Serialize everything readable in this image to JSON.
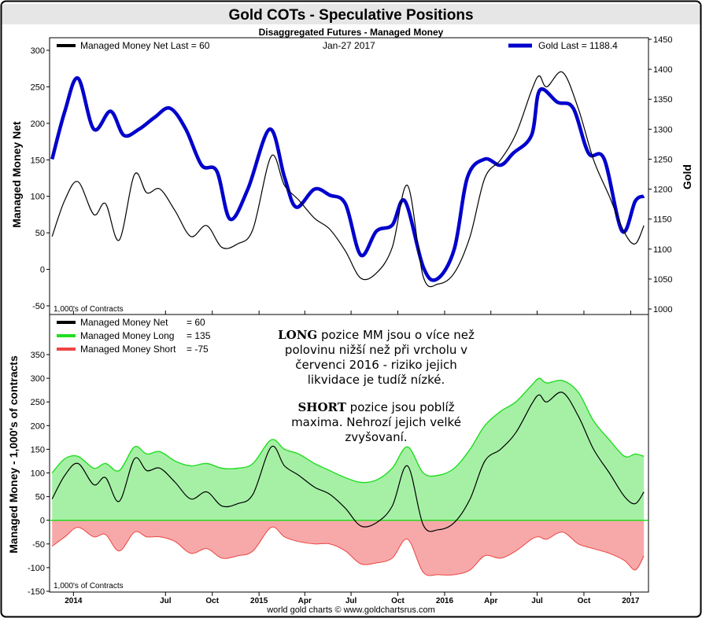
{
  "title": "Gold COTs - Speculative Positions",
  "subtitle": "Disaggregated Futures - Managed Money",
  "footer": "world gold charts © www.goldchartsrus.com",
  "colors": {
    "background": "#ffffff",
    "net": "#000000",
    "gold": "#0000cc",
    "long_line": "#22dd22",
    "long_fill": "#a6f0a6",
    "short_line": "#ee4444",
    "short_fill": "#f7a9a9",
    "title_bg": "#e6e6e6"
  },
  "top_panel": {
    "legend_net": "Managed Money Net   Last = 60",
    "date": "Jan-27  2017",
    "legend_gold": "Gold Last = 1188.4",
    "y_label_left": "Managed Money Net",
    "y_label_right": "Gold",
    "units": "1,000's of Contracts",
    "y_ticks_left": [
      "300",
      "250",
      "200",
      "150",
      "100",
      "50",
      "0",
      "-50"
    ],
    "y_ticks_right": [
      "1450",
      "1400",
      "1350",
      "1300",
      "1250",
      "1200",
      "1150",
      "1100",
      "1050",
      "1000"
    ]
  },
  "bottom_panel": {
    "legend_net": "Managed Money Net",
    "legend_net_value": "= 60",
    "legend_long": "Managed Money Long",
    "legend_long_value": "= 135",
    "legend_short": "Managed Money Short",
    "legend_short_value": "= -75",
    "y_label": "Managed Money - 1,000's of contracts",
    "units": "1,000's of Contracts",
    "y_ticks": [
      "350",
      "300",
      "250",
      "200",
      "150",
      "100",
      "50",
      "0",
      "-50",
      "-100",
      "-150"
    ],
    "note_line1_bold": "LONG",
    "note_line1_rest": " pozice MM jsou o více než",
    "note_line2": "polovinu nižší než při vrcholu v",
    "note_line3": "červenci 2016 - riziko jejich",
    "note_line4": "likvidace je tudíž nízké.",
    "note_line5_bold": "SHORT",
    "note_line5_rest": " pozice jsou poblíž",
    "note_line6": "maxima. Nehrozí jejich velké",
    "note_line7": "zvyšovaní."
  },
  "x_ticks": [
    "2014",
    "Jul",
    "Oct",
    "2015",
    "Apr",
    "Jul",
    "Oct",
    "2016",
    "Apr",
    "Jul",
    "Oct",
    "2017"
  ],
  "chart_data": [
    {
      "type": "line",
      "title": "Gold COTs - Speculative Positions",
      "subtitle": "Disaggregated Futures - Managed Money",
      "xlabel": "",
      "ylabel": "Managed Money Net",
      "ylabel_right": "Gold",
      "ylim": [
        -50,
        300
      ],
      "ylim_right": [
        1000,
        1450
      ],
      "x_range": [
        "2013-11-15",
        "2017-02-05"
      ],
      "grid": false,
      "legend": "top",
      "series": [
        {
          "name": "Managed Money Net",
          "axis": "left",
          "x": [
            "2013-11-20",
            "2013-12-15",
            "2014-01-10",
            "2014-02-10",
            "2014-03-05",
            "2014-04-01",
            "2014-05-01",
            "2014-05-25",
            "2014-06-20",
            "2014-07-20",
            "2014-08-20",
            "2014-09-20",
            "2014-10-20",
            "2014-11-20",
            "2014-12-20",
            "2015-01-25",
            "2015-02-20",
            "2015-03-20",
            "2015-04-20",
            "2015-05-20",
            "2015-06-20",
            "2015-07-20",
            "2015-08-20",
            "2015-09-20",
            "2015-10-20",
            "2015-11-20",
            "2015-12-20",
            "2016-01-20",
            "2016-02-20",
            "2016-03-20",
            "2016-04-20",
            "2016-05-20",
            "2016-06-20",
            "2016-07-05",
            "2016-07-20",
            "2016-08-20",
            "2016-09-20",
            "2016-10-20",
            "2016-11-20",
            "2016-12-20",
            "2017-01-10",
            "2017-01-27"
          ],
          "values": [
            45,
            95,
            120,
            75,
            90,
            40,
            130,
            105,
            110,
            80,
            45,
            60,
            30,
            35,
            55,
            155,
            115,
            95,
            70,
            55,
            25,
            -12,
            -5,
            30,
            115,
            -10,
            -20,
            -5,
            45,
            125,
            150,
            185,
            245,
            265,
            250,
            270,
            220,
            150,
            100,
            50,
            35,
            60
          ]
        },
        {
          "name": "Gold",
          "axis": "right",
          "x": [
            "2013-11-20",
            "2013-12-15",
            "2014-01-10",
            "2014-02-10",
            "2014-03-15",
            "2014-04-10",
            "2014-05-10",
            "2014-06-10",
            "2014-07-10",
            "2014-08-10",
            "2014-09-10",
            "2014-10-10",
            "2014-11-05",
            "2014-12-10",
            "2015-01-22",
            "2015-02-20",
            "2015-03-15",
            "2015-04-20",
            "2015-05-20",
            "2015-06-20",
            "2015-07-20",
            "2015-08-20",
            "2015-09-20",
            "2015-10-15",
            "2015-11-20",
            "2015-12-17",
            "2016-01-20",
            "2016-02-15",
            "2016-03-20",
            "2016-04-20",
            "2016-05-15",
            "2016-06-20",
            "2016-07-06",
            "2016-08-10",
            "2016-09-10",
            "2016-10-10",
            "2016-11-10",
            "2016-12-15",
            "2017-01-10",
            "2017-01-27"
          ],
          "values": [
            1250,
            1330,
            1385,
            1300,
            1330,
            1290,
            1300,
            1320,
            1335,
            1300,
            1240,
            1230,
            1150,
            1200,
            1300,
            1220,
            1170,
            1200,
            1190,
            1175,
            1090,
            1130,
            1140,
            1180,
            1070,
            1050,
            1100,
            1220,
            1250,
            1240,
            1260,
            1290,
            1365,
            1345,
            1335,
            1260,
            1250,
            1130,
            1180,
            1188.4
          ]
        }
      ]
    },
    {
      "type": "area",
      "xlabel": "",
      "ylabel": "Managed Money - 1,000's of contracts",
      "ylim": [
        -150,
        350
      ],
      "x_range": [
        "2013-11-15",
        "2017-02-05"
      ],
      "grid": false,
      "legend": "top-left",
      "series": [
        {
          "name": "Managed Money Net",
          "x": [
            "2013-11-20",
            "2013-12-15",
            "2014-01-10",
            "2014-02-10",
            "2014-03-05",
            "2014-04-01",
            "2014-05-01",
            "2014-05-25",
            "2014-06-20",
            "2014-07-20",
            "2014-08-20",
            "2014-09-20",
            "2014-10-20",
            "2014-11-20",
            "2014-12-20",
            "2015-01-25",
            "2015-02-20",
            "2015-03-20",
            "2015-04-20",
            "2015-05-20",
            "2015-06-20",
            "2015-07-20",
            "2015-08-20",
            "2015-09-20",
            "2015-10-20",
            "2015-11-20",
            "2015-12-20",
            "2016-01-20",
            "2016-02-20",
            "2016-03-20",
            "2016-04-20",
            "2016-05-20",
            "2016-06-20",
            "2016-07-05",
            "2016-07-20",
            "2016-08-20",
            "2016-09-20",
            "2016-10-20",
            "2016-11-20",
            "2016-12-20",
            "2017-01-10",
            "2017-01-27"
          ],
          "values": [
            45,
            95,
            120,
            75,
            90,
            40,
            130,
            105,
            110,
            80,
            45,
            60,
            30,
            35,
            55,
            155,
            115,
            95,
            70,
            55,
            25,
            -12,
            -5,
            30,
            115,
            -10,
            -20,
            -5,
            45,
            125,
            150,
            185,
            245,
            265,
            250,
            270,
            220,
            150,
            100,
            50,
            35,
            60
          ]
        },
        {
          "name": "Managed Money Long",
          "x": [
            "2013-11-20",
            "2013-12-15",
            "2014-01-10",
            "2014-02-10",
            "2014-03-05",
            "2014-04-01",
            "2014-05-01",
            "2014-05-25",
            "2014-06-20",
            "2014-07-20",
            "2014-08-20",
            "2014-09-20",
            "2014-10-20",
            "2014-11-20",
            "2014-12-20",
            "2015-01-25",
            "2015-02-20",
            "2015-03-20",
            "2015-04-20",
            "2015-05-20",
            "2015-06-20",
            "2015-07-20",
            "2015-08-20",
            "2015-09-20",
            "2015-10-20",
            "2015-11-20",
            "2015-12-20",
            "2016-01-20",
            "2016-02-20",
            "2016-03-20",
            "2016-04-20",
            "2016-05-20",
            "2016-06-20",
            "2016-07-05",
            "2016-07-20",
            "2016-08-20",
            "2016-09-20",
            "2016-10-20",
            "2016-11-20",
            "2016-12-20",
            "2017-01-10",
            "2017-01-27"
          ],
          "values": [
            100,
            130,
            135,
            110,
            120,
            105,
            155,
            140,
            145,
            125,
            115,
            120,
            110,
            110,
            120,
            170,
            150,
            140,
            120,
            105,
            90,
            80,
            85,
            110,
            155,
            100,
            95,
            110,
            150,
            200,
            230,
            250,
            285,
            300,
            290,
            295,
            270,
            210,
            170,
            135,
            140,
            135
          ]
        },
        {
          "name": "Managed Money Short",
          "x": [
            "2013-11-20",
            "2013-12-15",
            "2014-01-10",
            "2014-02-10",
            "2014-03-05",
            "2014-04-01",
            "2014-05-01",
            "2014-05-25",
            "2014-06-20",
            "2014-07-20",
            "2014-08-20",
            "2014-09-20",
            "2014-10-20",
            "2014-11-20",
            "2014-12-20",
            "2015-01-25",
            "2015-02-20",
            "2015-03-20",
            "2015-04-20",
            "2015-05-20",
            "2015-06-20",
            "2015-07-20",
            "2015-08-20",
            "2015-09-20",
            "2015-10-20",
            "2015-11-20",
            "2015-12-20",
            "2016-01-20",
            "2016-02-20",
            "2016-03-20",
            "2016-04-20",
            "2016-05-20",
            "2016-06-20",
            "2016-07-05",
            "2016-07-20",
            "2016-08-20",
            "2016-09-20",
            "2016-10-20",
            "2016-11-20",
            "2016-12-20",
            "2017-01-10",
            "2017-01-27"
          ],
          "values": [
            -55,
            -35,
            -15,
            -35,
            -30,
            -65,
            -25,
            -35,
            -35,
            -45,
            -70,
            -60,
            -80,
            -75,
            -65,
            -15,
            -35,
            -45,
            -50,
            -50,
            -65,
            -92,
            -90,
            -80,
            -40,
            -110,
            -115,
            -115,
            -105,
            -75,
            -80,
            -65,
            -40,
            -35,
            -40,
            -25,
            -50,
            -60,
            -70,
            -85,
            -105,
            -75
          ]
        }
      ]
    }
  ]
}
